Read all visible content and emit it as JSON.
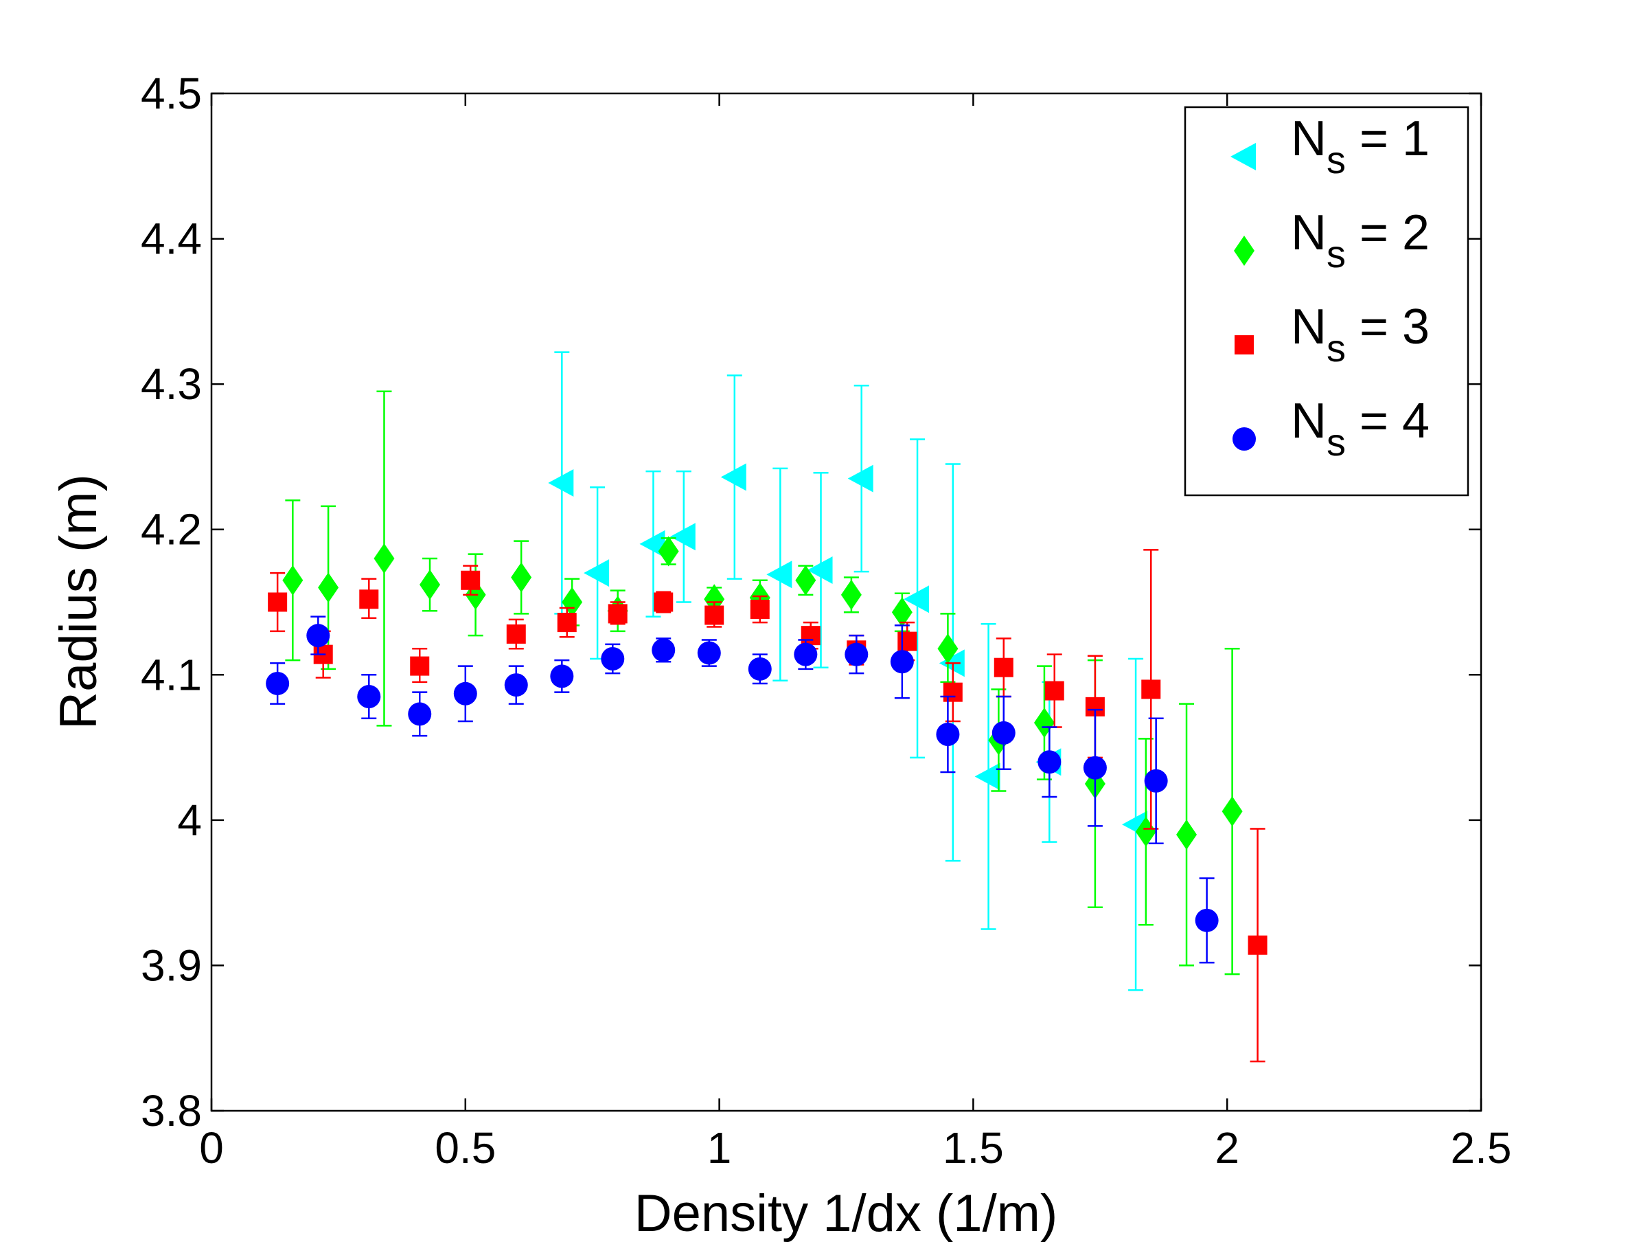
{
  "chart_data": {
    "type": "scatter",
    "title": "",
    "xlabel": "Density 1/dx (1/m)",
    "ylabel": "Radius (m)",
    "xlim": [
      0,
      2.5
    ],
    "ylim": [
      3.8,
      4.5
    ],
    "xticks": [
      0,
      0.5,
      1,
      1.5,
      2,
      2.5
    ],
    "xtick_labels": [
      "0",
      "0.5",
      "1",
      "1.5",
      "2",
      "2.5"
    ],
    "yticks": [
      3.8,
      3.9,
      4.0,
      4.1,
      4.2,
      4.3,
      4.4,
      4.5
    ],
    "ytick_labels": [
      "3.8",
      "3.9",
      "4",
      "4.1",
      "4.2",
      "4.3",
      "4.4",
      "4.5"
    ],
    "grid": false,
    "legend_position": "top-right",
    "series": [
      {
        "name": "N_s = 1",
        "legend_main": "N",
        "legend_sub": "s",
        "legend_rest": " = 1",
        "color": "#00ffff",
        "marker": "triangle-left",
        "points": [
          {
            "x": 0.69,
            "y": 4.232,
            "lo": 4.142,
            "hi": 4.322
          },
          {
            "x": 0.76,
            "y": 4.17,
            "lo": 4.111,
            "hi": 4.229
          },
          {
            "x": 0.87,
            "y": 4.19,
            "lo": 4.14,
            "hi": 4.24
          },
          {
            "x": 0.93,
            "y": 4.195,
            "lo": 4.15,
            "hi": 4.24
          },
          {
            "x": 1.03,
            "y": 4.236,
            "lo": 4.166,
            "hi": 4.306
          },
          {
            "x": 1.12,
            "y": 4.169,
            "lo": 4.096,
            "hi": 4.242
          },
          {
            "x": 1.2,
            "y": 4.172,
            "lo": 4.105,
            "hi": 4.239
          },
          {
            "x": 1.28,
            "y": 4.235,
            "lo": 4.171,
            "hi": 4.299
          },
          {
            "x": 1.39,
            "y": 4.152,
            "lo": 4.043,
            "hi": 4.262
          },
          {
            "x": 1.46,
            "y": 4.108,
            "lo": 3.972,
            "hi": 4.245
          },
          {
            "x": 1.53,
            "y": 4.03,
            "lo": 3.925,
            "hi": 4.135
          },
          {
            "x": 1.65,
            "y": 4.04,
            "lo": 3.985,
            "hi": 4.095
          },
          {
            "x": 1.82,
            "y": 3.997,
            "lo": 3.883,
            "hi": 4.111
          }
        ]
      },
      {
        "name": "N_s = 2",
        "legend_main": "N",
        "legend_sub": "s",
        "legend_rest": " = 2",
        "color": "#00ff00",
        "marker": "diamond",
        "points": [
          {
            "x": 0.16,
            "y": 4.165,
            "lo": 4.11,
            "hi": 4.22
          },
          {
            "x": 0.23,
            "y": 4.16,
            "lo": 4.104,
            "hi": 4.216
          },
          {
            "x": 0.34,
            "y": 4.18,
            "lo": 4.065,
            "hi": 4.295
          },
          {
            "x": 0.43,
            "y": 4.162,
            "lo": 4.144,
            "hi": 4.18
          },
          {
            "x": 0.52,
            "y": 4.155,
            "lo": 4.127,
            "hi": 4.183
          },
          {
            "x": 0.61,
            "y": 4.167,
            "lo": 4.142,
            "hi": 4.192
          },
          {
            "x": 0.71,
            "y": 4.15,
            "lo": 4.134,
            "hi": 4.166
          },
          {
            "x": 0.8,
            "y": 4.144,
            "lo": 4.13,
            "hi": 4.158
          },
          {
            "x": 0.9,
            "y": 4.185,
            "lo": 4.176,
            "hi": 4.194
          },
          {
            "x": 0.99,
            "y": 4.152,
            "lo": 4.144,
            "hi": 4.16
          },
          {
            "x": 1.08,
            "y": 4.153,
            "lo": 4.141,
            "hi": 4.165
          },
          {
            "x": 1.17,
            "y": 4.165,
            "lo": 4.155,
            "hi": 4.175
          },
          {
            "x": 1.26,
            "y": 4.155,
            "lo": 4.143,
            "hi": 4.167
          },
          {
            "x": 1.36,
            "y": 4.143,
            "lo": 4.13,
            "hi": 4.156
          },
          {
            "x": 1.45,
            "y": 4.118,
            "lo": 4.095,
            "hi": 4.142
          },
          {
            "x": 1.55,
            "y": 4.055,
            "lo": 4.02,
            "hi": 4.09
          },
          {
            "x": 1.64,
            "y": 4.067,
            "lo": 4.028,
            "hi": 4.106
          },
          {
            "x": 1.74,
            "y": 4.025,
            "lo": 3.94,
            "hi": 4.11
          },
          {
            "x": 1.84,
            "y": 3.992,
            "lo": 3.928,
            "hi": 4.056
          },
          {
            "x": 1.92,
            "y": 3.99,
            "lo": 3.9,
            "hi": 4.08
          },
          {
            "x": 2.01,
            "y": 4.006,
            "lo": 3.894,
            "hi": 4.118
          }
        ]
      },
      {
        "name": "N_s = 3",
        "legend_main": "N",
        "legend_sub": "s",
        "legend_rest": " = 3",
        "color": "#ff0000",
        "marker": "square",
        "points": [
          {
            "x": 0.13,
            "y": 4.15,
            "lo": 4.13,
            "hi": 4.17
          },
          {
            "x": 0.22,
            "y": 4.114,
            "lo": 4.098,
            "hi": 4.13
          },
          {
            "x": 0.31,
            "y": 4.152,
            "lo": 4.139,
            "hi": 4.166
          },
          {
            "x": 0.41,
            "y": 4.106,
            "lo": 4.095,
            "hi": 4.118
          },
          {
            "x": 0.51,
            "y": 4.165,
            "lo": 4.155,
            "hi": 4.175
          },
          {
            "x": 0.6,
            "y": 4.128,
            "lo": 4.118,
            "hi": 4.138
          },
          {
            "x": 0.7,
            "y": 4.136,
            "lo": 4.126,
            "hi": 4.146
          },
          {
            "x": 0.8,
            "y": 4.142,
            "lo": 4.135,
            "hi": 4.15
          },
          {
            "x": 0.89,
            "y": 4.15,
            "lo": 4.143,
            "hi": 4.157
          },
          {
            "x": 0.99,
            "y": 4.141,
            "lo": 4.133,
            "hi": 4.15
          },
          {
            "x": 1.08,
            "y": 4.145,
            "lo": 4.136,
            "hi": 4.154
          },
          {
            "x": 1.18,
            "y": 4.127,
            "lo": 4.118,
            "hi": 4.136
          },
          {
            "x": 1.27,
            "y": 4.117,
            "lo": 4.107,
            "hi": 4.127
          },
          {
            "x": 1.37,
            "y": 4.123,
            "lo": 4.11,
            "hi": 4.136
          },
          {
            "x": 1.46,
            "y": 4.088,
            "lo": 4.068,
            "hi": 4.108
          },
          {
            "x": 1.56,
            "y": 4.105,
            "lo": 4.085,
            "hi": 4.125
          },
          {
            "x": 1.66,
            "y": 4.089,
            "lo": 4.064,
            "hi": 4.114
          },
          {
            "x": 1.74,
            "y": 4.078,
            "lo": 4.043,
            "hi": 4.113
          },
          {
            "x": 1.85,
            "y": 4.09,
            "lo": 3.994,
            "hi": 4.186
          },
          {
            "x": 2.06,
            "y": 3.914,
            "lo": 3.834,
            "hi": 3.994
          }
        ]
      },
      {
        "name": "N_s = 4",
        "legend_main": "N",
        "legend_sub": "s",
        "legend_rest": " = 4",
        "color": "#0000ff",
        "marker": "circle",
        "points": [
          {
            "x": 0.13,
            "y": 4.094,
            "lo": 4.08,
            "hi": 4.108
          },
          {
            "x": 0.21,
            "y": 4.127,
            "lo": 4.114,
            "hi": 4.14
          },
          {
            "x": 0.31,
            "y": 4.085,
            "lo": 4.07,
            "hi": 4.1
          },
          {
            "x": 0.41,
            "y": 4.073,
            "lo": 4.058,
            "hi": 4.088
          },
          {
            "x": 0.5,
            "y": 4.087,
            "lo": 4.068,
            "hi": 4.106
          },
          {
            "x": 0.6,
            "y": 4.093,
            "lo": 4.08,
            "hi": 4.106
          },
          {
            "x": 0.69,
            "y": 4.099,
            "lo": 4.088,
            "hi": 4.11
          },
          {
            "x": 0.79,
            "y": 4.111,
            "lo": 4.101,
            "hi": 4.121
          },
          {
            "x": 0.89,
            "y": 4.117,
            "lo": 4.109,
            "hi": 4.125
          },
          {
            "x": 0.98,
            "y": 4.115,
            "lo": 4.106,
            "hi": 4.124
          },
          {
            "x": 1.08,
            "y": 4.104,
            "lo": 4.094,
            "hi": 4.114
          },
          {
            "x": 1.17,
            "y": 4.114,
            "lo": 4.104,
            "hi": 4.124
          },
          {
            "x": 1.27,
            "y": 4.114,
            "lo": 4.101,
            "hi": 4.127
          },
          {
            "x": 1.36,
            "y": 4.109,
            "lo": 4.084,
            "hi": 4.134
          },
          {
            "x": 1.45,
            "y": 4.059,
            "lo": 4.033,
            "hi": 4.085
          },
          {
            "x": 1.56,
            "y": 4.06,
            "lo": 4.035,
            "hi": 4.085
          },
          {
            "x": 1.65,
            "y": 4.04,
            "lo": 4.016,
            "hi": 4.064
          },
          {
            "x": 1.74,
            "y": 4.036,
            "lo": 3.996,
            "hi": 4.076
          },
          {
            "x": 1.86,
            "y": 4.027,
            "lo": 3.984,
            "hi": 4.07
          },
          {
            "x": 1.96,
            "y": 3.931,
            "lo": 3.902,
            "hi": 3.96
          }
        ]
      }
    ]
  }
}
